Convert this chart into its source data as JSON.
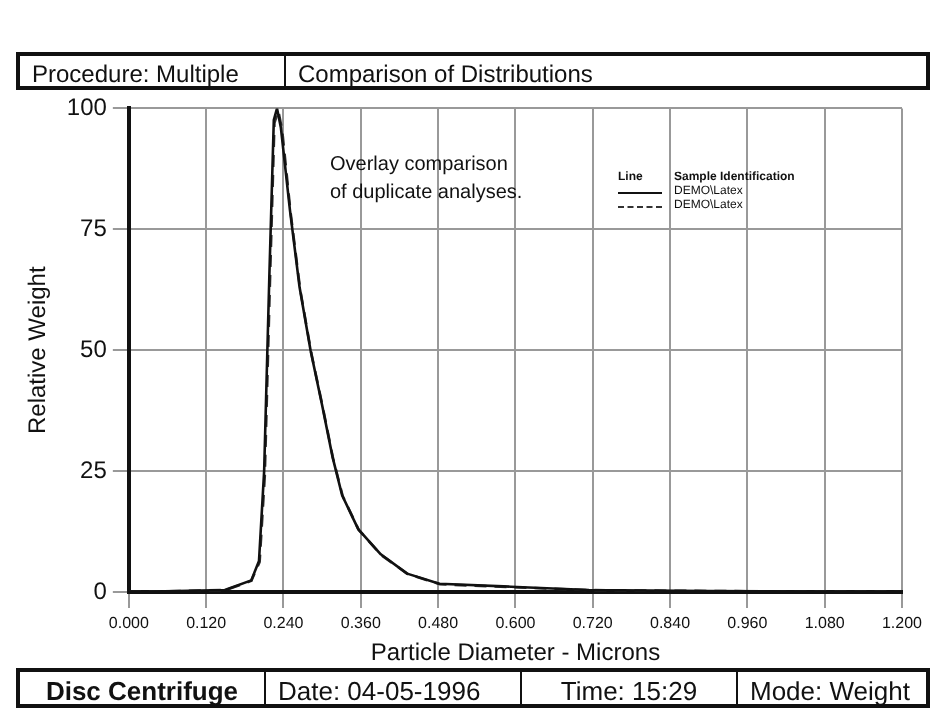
{
  "chart_data": {
    "type": "line",
    "title": "Comparison of Distributions",
    "xlabel": "Particle Diameter - Microns",
    "ylabel": "Relative Weight",
    "legend_title": "Sample Identification",
    "annotations": [
      "Procedure: Multiple",
      "Overlay comparison\nof duplicate analyses.",
      "Line",
      "Disc Centrifuge",
      "Date: 04-05-1996",
      "Time:  15:29",
      "Mode:  Weight"
    ],
    "series": [
      {
        "name": "DEMO\\Latex",
        "color": "#111111",
        "line_style": "solid",
        "x": [
          0,
          0.149,
          0.19,
          0.202,
          0.21,
          0.218,
          0.225,
          0.23,
          0.236,
          0.25,
          0.265,
          0.282,
          0.3,
          0.316,
          0.331,
          0.356,
          0.391,
          0.432,
          0.482,
          0.593,
          0.714,
          0.9,
          1.2
        ],
        "values": [
          0,
          0.4,
          2.4,
          6.4,
          25,
          65,
          97.6,
          100,
          96,
          79,
          63,
          50,
          38.6,
          28,
          20,
          13,
          7.8,
          3.8,
          1.7,
          1.1,
          0.4,
          0.2,
          0
        ]
      },
      {
        "name": "DEMO\\Latex",
        "color": "#333333",
        "line_style": "dashed",
        "x": [
          0,
          0.15,
          0.19,
          0.203,
          0.211,
          0.219,
          0.226,
          0.232,
          0.238,
          0.251,
          0.266,
          0.283,
          0.301,
          0.317,
          0.332,
          0.357,
          0.392,
          0.433,
          0.483,
          0.594,
          0.715,
          0.9,
          1.2
        ],
        "values": [
          0,
          0.4,
          2.3,
          6.2,
          24,
          64,
          97,
          99.5,
          95.5,
          78.5,
          62.5,
          49.5,
          38.2,
          27.6,
          19.8,
          12.8,
          7.6,
          3.7,
          1.6,
          1.0,
          0.4,
          0.2,
          0
        ]
      }
    ],
    "xlim": [
      0,
      1.2
    ],
    "xticks": [
      {
        "value": 0,
        "label": "0.000"
      },
      {
        "value": 0.12,
        "label": "0.120"
      },
      {
        "value": 0.24,
        "label": "0.240"
      },
      {
        "value": 0.36,
        "label": "0.360"
      },
      {
        "value": 0.48,
        "label": "0.480"
      },
      {
        "value": 0.6,
        "label": "0.600"
      },
      {
        "value": 0.72,
        "label": "0.720"
      },
      {
        "value": 0.84,
        "label": "0.840"
      },
      {
        "value": 0.96,
        "label": "0.960"
      },
      {
        "value": 1.08,
        "label": "1.080"
      },
      {
        "value": 1.2,
        "label": "1.200"
      }
    ],
    "ylim": [
      0,
      100
    ],
    "yticks": [
      0,
      25,
      50,
      75,
      100
    ],
    "grid": true,
    "legend": "top right",
    "marker": "none"
  }
}
